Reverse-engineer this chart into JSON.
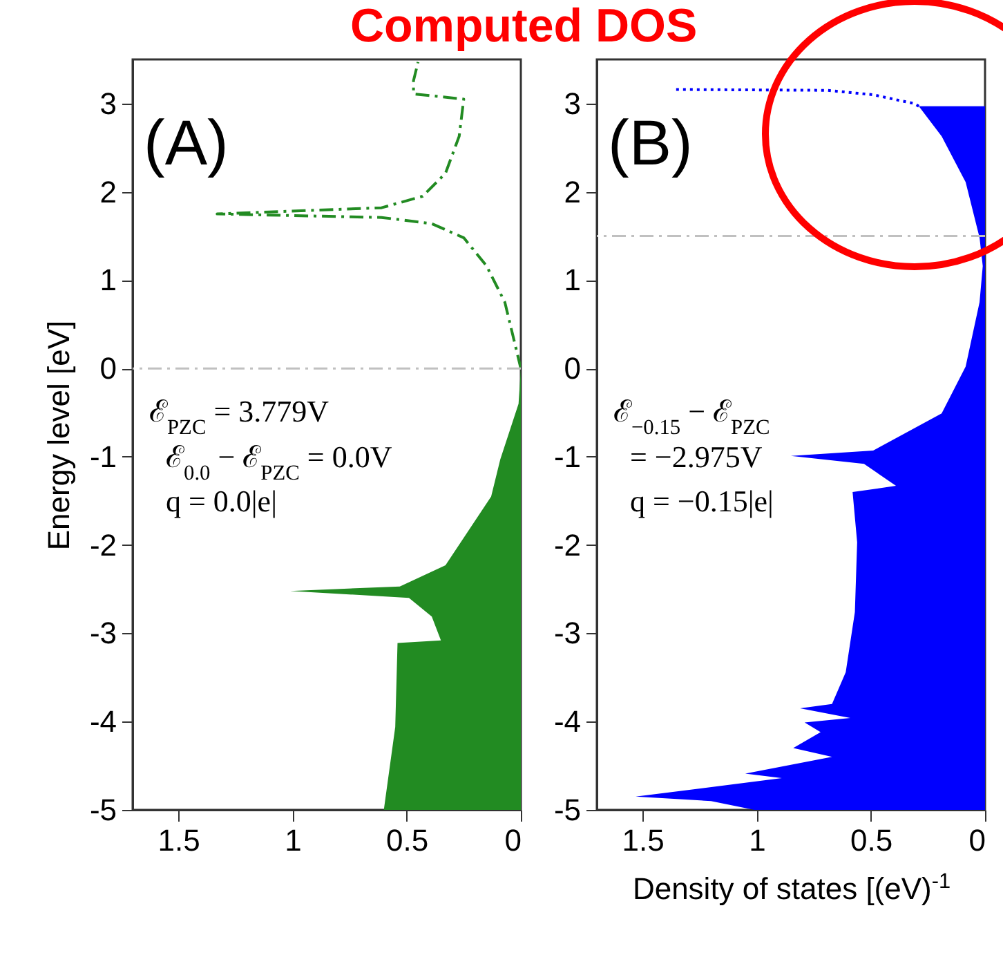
{
  "chart_data": [
    {
      "type": "area",
      "title": "Computed DOS",
      "ylabel": "Energy level [eV]",
      "xlim": [
        1.7,
        0
      ],
      "ylim": [
        -5,
        3.5
      ],
      "xticks": [
        1.5,
        1,
        0.5,
        0
      ],
      "yticks": [
        -5,
        -4,
        -3,
        -2,
        -1,
        0,
        1,
        2,
        3
      ],
      "orientation": "horizontal",
      "series": [
        {
          "color": "#228b22",
          "values": [
            0,
            0.01,
            0.09,
            0.13,
            0.33,
            0.53,
            1.01,
            0.49,
            0.39,
            0.35,
            0.54,
            0.55,
            0.6
          ],
          "x": [
            0,
            -0.4,
            -1.03,
            -1.45,
            -2.23,
            -2.47,
            -2.52,
            -2.6,
            -2.81,
            -3.08,
            -3.11,
            -4.06,
            -5
          ]
        },
        {
          "type": "line",
          "color": "#228b22",
          "line_style": "dashed",
          "values": [
            0,
            0.07,
            0.15,
            0.25,
            0.39,
            0.61,
            1.33,
            0.61,
            0.43,
            0.33,
            0.27,
            0.25,
            0.47,
            0.47,
            0.45
          ],
          "x": [
            0,
            0.75,
            1.16,
            1.48,
            1.64,
            1.71,
            1.75,
            1.82,
            1.95,
            2.21,
            2.63,
            3.05,
            3.11,
            3.26,
            3.47
          ]
        }
      ],
      "ref_lines": [
        {
          "axis": "y",
          "value": 0,
          "color": "#c0c0c0",
          "line_style": "dashed"
        }
      ],
      "annotations": [
        "(A)",
        "ℰ$_{PZC}$ = 3.779V",
        "ℰ$_{0.0}$ − ℰ$_{PZC}$ = 0.0V",
        "q = 0.0|e|"
      ]
    },
    {
      "type": "area",
      "xlabel": "Density of states [(eV)$^{-1}$",
      "xlim": [
        1.7,
        0
      ],
      "ylim": [
        -5,
        3.5
      ],
      "xticks": [
        1.5,
        1,
        0.5,
        0
      ],
      "yticks": [
        -5,
        -4,
        -3,
        -2,
        -1,
        0,
        1,
        2,
        3
      ],
      "orientation": "horizontal",
      "series": [
        {
          "color": "#0000ff",
          "values": [
            0.29,
            0.19,
            0.085,
            0.024,
            0.01,
            0.024,
            0.085,
            0.19,
            0.49,
            0.85,
            0.53,
            0.39,
            0.58,
            0.56,
            0.57,
            0.61,
            0.67,
            0.81,
            0.59,
            0.79,
            0.72,
            0.84,
            0.67,
            1.05,
            0.89,
            1.53,
            1.2,
            1.01
          ],
          "x": [
            2.97,
            2.63,
            2.11,
            1.48,
            1.16,
            0.75,
            0.02,
            -0.51,
            -0.93,
            -0.99,
            -1.08,
            -1.33,
            -1.4,
            -1.97,
            -2.76,
            -3.44,
            -3.8,
            -3.85,
            -3.96,
            -4.01,
            -4.12,
            -4.3,
            -4.4,
            -4.59,
            -4.64,
            -4.85,
            -4.9,
            -5
          ]
        },
        {
          "type": "line",
          "color": "#0000ff",
          "line_style": "dotted",
          "values": [
            0.29,
            0.31,
            0.49,
            0.69,
            1.36
          ],
          "x": [
            2.97,
            3.0,
            3.1,
            3.15,
            3.16
          ]
        }
      ],
      "ref_lines": [
        {
          "axis": "y",
          "value": 1.5,
          "color": "#c0c0c0",
          "line_style": "dashed"
        }
      ],
      "annotations": [
        "(B)",
        "ℰ$_{−0.15}$ − ℰ$_{PZC}$",
        "= −2.975V",
        "q = −0.15|e|"
      ]
    }
  ]
}
